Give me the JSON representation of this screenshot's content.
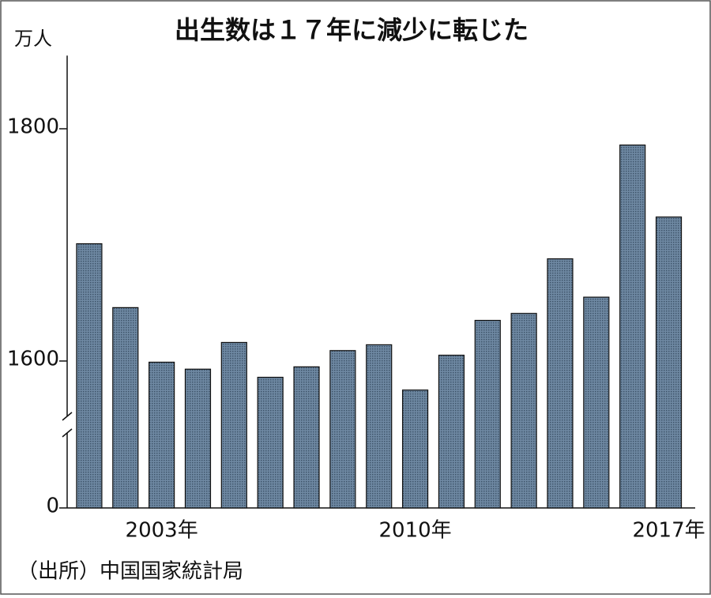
{
  "chart_data": {
    "type": "bar",
    "title": "出生数は１７年に減少に転じた",
    "y_label": "万人",
    "source": "（出所）中国国家統計局",
    "categories": [
      null,
      null,
      "2003年",
      null,
      null,
      null,
      null,
      null,
      null,
      "2010年",
      null,
      null,
      null,
      null,
      null,
      null,
      "2017年"
    ],
    "values": [
      1701,
      1646,
      1599,
      1593,
      1616,
      1586,
      1595,
      1609,
      1614,
      1575,
      1605,
      1635,
      1641,
      1688,
      1655,
      1786,
      1724
    ],
    "color": "#5b7590",
    "ylim": [
      0,
      1863
    ],
    "yticks": [
      0,
      1600,
      1800
    ],
    "axis_break": true
  }
}
